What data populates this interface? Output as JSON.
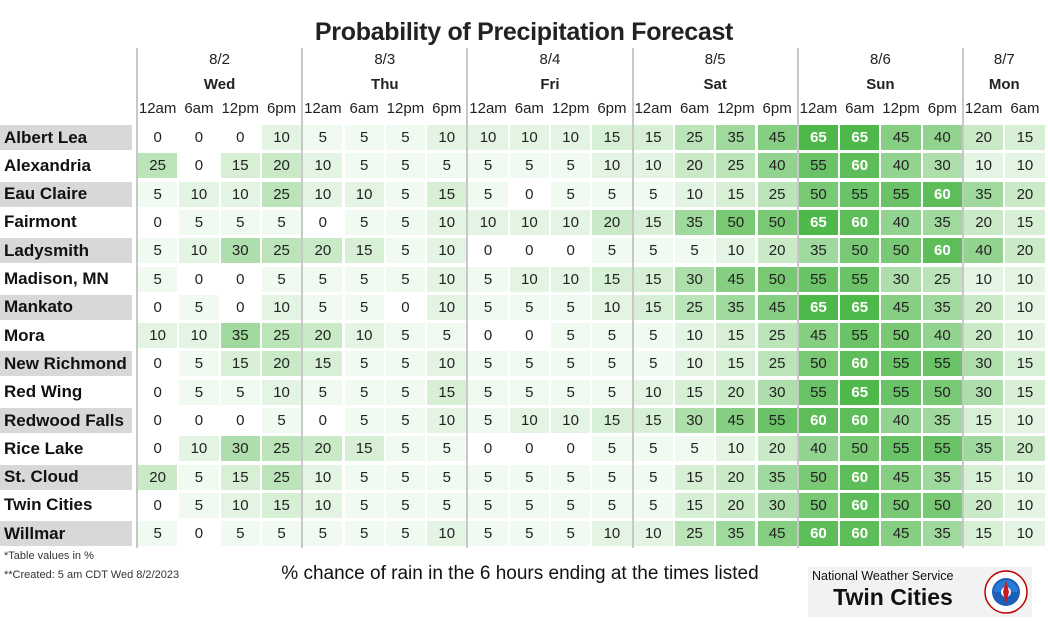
{
  "title": "Probability of Precipitation Forecast",
  "notes": [
    "*Table values in %",
    "**Created: 5 am CDT Wed 8/2/2023"
  ],
  "caption": "% chance of rain in the 6 hours ending at the times listed",
  "logo": {
    "nws": "National Weather Service",
    "office": "Twin Cities"
  },
  "colors": {
    "row_label_shade": "#d8d8d8",
    "low": "#ffffff",
    "high": "#4fb84a",
    "high_text": "#ffffff"
  },
  "chart_data": {
    "type": "heatmap",
    "title": "Probability of Precipitation Forecast",
    "days": [
      {
        "date": "8/2",
        "name": "Wed",
        "times": [
          "12am",
          "6am",
          "12pm",
          "6pm"
        ]
      },
      {
        "date": "8/3",
        "name": "Thu",
        "times": [
          "12am",
          "6am",
          "12pm",
          "6pm"
        ]
      },
      {
        "date": "8/4",
        "name": "Fri",
        "times": [
          "12am",
          "6am",
          "12pm",
          "6pm"
        ]
      },
      {
        "date": "8/5",
        "name": "Sat",
        "times": [
          "12am",
          "6am",
          "12pm",
          "6pm"
        ]
      },
      {
        "date": "8/6",
        "name": "Sun",
        "times": [
          "12am",
          "6am",
          "12pm",
          "6pm"
        ]
      },
      {
        "date": "8/7",
        "name": "Mon",
        "times": [
          "12am",
          "6am"
        ]
      }
    ],
    "rows": [
      {
        "location": "Albert Lea",
        "values": [
          0,
          0,
          0,
          10,
          5,
          5,
          5,
          10,
          10,
          10,
          10,
          15,
          15,
          25,
          35,
          45,
          65,
          65,
          45,
          40,
          20,
          15
        ]
      },
      {
        "location": "Alexandria",
        "values": [
          25,
          0,
          15,
          20,
          10,
          5,
          5,
          5,
          5,
          5,
          5,
          10,
          10,
          20,
          25,
          40,
          55,
          60,
          40,
          30,
          10,
          10
        ]
      },
      {
        "location": "Eau Claire",
        "values": [
          5,
          10,
          10,
          25,
          10,
          10,
          5,
          15,
          5,
          0,
          5,
          5,
          5,
          10,
          15,
          25,
          50,
          55,
          55,
          60,
          35,
          20
        ]
      },
      {
        "location": "Fairmont",
        "values": [
          0,
          5,
          5,
          5,
          0,
          5,
          5,
          10,
          10,
          10,
          10,
          20,
          15,
          35,
          50,
          50,
          65,
          60,
          40,
          35,
          20,
          15
        ]
      },
      {
        "location": "Ladysmith",
        "values": [
          5,
          10,
          30,
          25,
          20,
          15,
          5,
          10,
          0,
          0,
          0,
          5,
          5,
          5,
          10,
          20,
          35,
          50,
          50,
          60,
          40,
          20
        ]
      },
      {
        "location": "Madison, MN",
        "values": [
          5,
          0,
          0,
          5,
          5,
          5,
          5,
          10,
          5,
          10,
          10,
          15,
          15,
          30,
          45,
          50,
          55,
          55,
          30,
          25,
          10,
          10
        ]
      },
      {
        "location": "Mankato",
        "values": [
          0,
          5,
          0,
          10,
          5,
          5,
          0,
          10,
          5,
          5,
          5,
          10,
          15,
          25,
          35,
          45,
          65,
          65,
          45,
          35,
          20,
          10
        ]
      },
      {
        "location": "Mora",
        "values": [
          10,
          10,
          35,
          25,
          20,
          10,
          5,
          5,
          0,
          0,
          5,
          5,
          5,
          10,
          15,
          25,
          45,
          55,
          50,
          40,
          20,
          10
        ]
      },
      {
        "location": "New Richmond",
        "values": [
          0,
          5,
          15,
          20,
          15,
          5,
          5,
          10,
          5,
          5,
          5,
          5,
          5,
          10,
          15,
          25,
          50,
          60,
          55,
          55,
          30,
          15
        ]
      },
      {
        "location": "Red Wing",
        "values": [
          0,
          5,
          5,
          10,
          5,
          5,
          5,
          15,
          5,
          5,
          5,
          5,
          10,
          15,
          20,
          30,
          55,
          65,
          55,
          50,
          30,
          15
        ]
      },
      {
        "location": "Redwood Falls",
        "values": [
          0,
          0,
          0,
          5,
          0,
          5,
          5,
          10,
          5,
          10,
          10,
          15,
          15,
          30,
          45,
          55,
          60,
          60,
          40,
          35,
          15,
          10
        ]
      },
      {
        "location": "Rice Lake",
        "values": [
          0,
          10,
          30,
          25,
          20,
          15,
          5,
          5,
          0,
          0,
          0,
          5,
          5,
          5,
          10,
          20,
          40,
          50,
          55,
          55,
          35,
          20
        ]
      },
      {
        "location": "St. Cloud",
        "values": [
          20,
          5,
          15,
          25,
          10,
          5,
          5,
          5,
          5,
          5,
          5,
          5,
          5,
          15,
          20,
          35,
          50,
          60,
          45,
          35,
          15,
          10
        ]
      },
      {
        "location": "Twin Cities",
        "values": [
          0,
          5,
          10,
          15,
          10,
          5,
          5,
          5,
          5,
          5,
          5,
          5,
          5,
          15,
          20,
          30,
          50,
          60,
          50,
          50,
          20,
          10
        ]
      },
      {
        "location": "Willmar",
        "values": [
          5,
          0,
          5,
          5,
          5,
          5,
          5,
          10,
          5,
          5,
          5,
          10,
          10,
          25,
          35,
          45,
          60,
          60,
          45,
          35,
          15,
          10
        ]
      }
    ],
    "color_scale": [
      "#ffffff",
      "#4fb84a"
    ],
    "value_range": [
      0,
      65
    ]
  }
}
